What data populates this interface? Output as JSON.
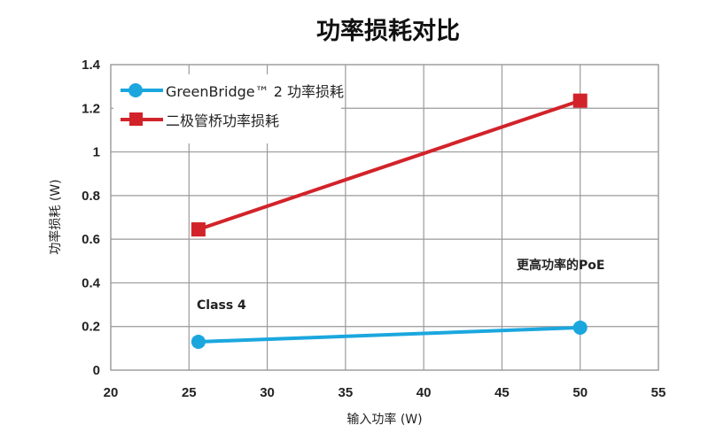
{
  "chart_data": {
    "type": "line",
    "title": "功率损耗对比",
    "xlabel": "输入功率 (W)",
    "ylabel": "功率损耗 (W)",
    "xlim": [
      20,
      55
    ],
    "ylim": [
      0,
      1.4
    ],
    "xticks": [
      "20",
      "25",
      "30",
      "35",
      "40",
      "45",
      "50",
      "55"
    ],
    "yticks": [
      "0",
      "0.2",
      "0.4",
      "0.6",
      "0.8",
      "1",
      "1.2",
      "1.4"
    ],
    "grid": true,
    "legend_position": "top-left",
    "series": [
      {
        "name": "GreenBridge™ 2 功率损耗",
        "marker": "circle",
        "color": "#1ba7de",
        "points": [
          {
            "x": 25.6,
            "y": 0.13
          },
          {
            "x": 50,
            "y": 0.195
          }
        ]
      },
      {
        "name": "二极管桥功率损耗",
        "marker": "square",
        "color": "#d2232a",
        "points": [
          {
            "x": 25.6,
            "y": 0.645
          },
          {
            "x": 50,
            "y": 1.235
          }
        ]
      }
    ],
    "annotations": [
      {
        "text": "Class 4"
      },
      {
        "text": "更高功率的PoE"
      }
    ]
  }
}
